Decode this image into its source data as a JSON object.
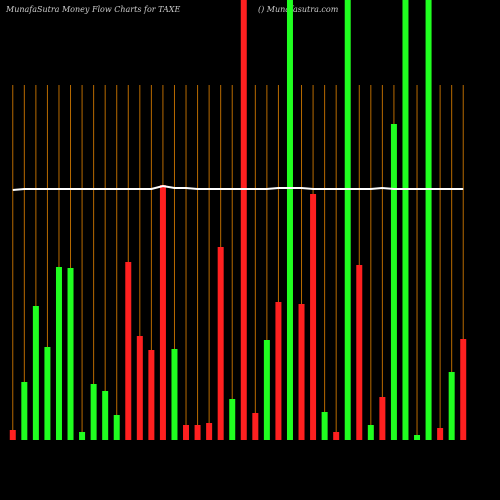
{
  "chart_data": {
    "type": "bar",
    "title": "MunafaSutra  Money Flow  Charts for TAXE",
    "subtitle": "() Munafasutra.com",
    "categories": [
      null,
      null,
      null,
      null,
      null,
      null,
      null,
      null,
      null,
      null,
      null,
      null,
      null,
      null,
      null,
      null,
      null,
      null,
      null,
      null,
      null,
      null,
      null,
      null,
      null,
      null,
      null,
      null,
      null,
      null,
      null,
      null,
      null,
      null,
      null,
      null,
      null,
      null,
      null,
      null
    ],
    "values": [
      10,
      58,
      134,
      93,
      173,
      172,
      8,
      56,
      49,
      25,
      178,
      104,
      90,
      255,
      91,
      15,
      15,
      17,
      193,
      41,
      440,
      27,
      100,
      138,
      440,
      136,
      246,
      28,
      8,
      440,
      175,
      15,
      43,
      316,
      440,
      5,
      440,
      12,
      68,
      101
    ],
    "colors": [
      "#ff2020",
      "#20ff20",
      "#20ff20",
      "#20ff20",
      "#20ff20",
      "#20ff20",
      "#20ff20",
      "#20ff20",
      "#20ff20",
      "#20ff20",
      "#ff2020",
      "#ff2020",
      "#ff2020",
      "#ff2020",
      "#20ff20",
      "#ff2020",
      "#ff2020",
      "#ff2020",
      "#ff2020",
      "#20ff20",
      "#ff2020",
      "#ff2020",
      "#20ff20",
      "#ff2020",
      "#20ff20",
      "#ff2020",
      "#ff2020",
      "#20ff20",
      "#ff2020",
      "#20ff20",
      "#ff2020",
      "#20ff20",
      "#ff2020",
      "#20ff20",
      "#20ff20",
      "#20ff20",
      "#20ff20",
      "#ff2020",
      "#20ff20",
      "#ff2020"
    ],
    "line": {
      "color": "#ffffff",
      "values": [
        250,
        251,
        251,
        251,
        251,
        251,
        251,
        251,
        251,
        251,
        251,
        251,
        251,
        254,
        252,
        252,
        251,
        251,
        251,
        251,
        251,
        251,
        251,
        252,
        252,
        252,
        251,
        251,
        251,
        251,
        251,
        251,
        252,
        251,
        251,
        251,
        251,
        251,
        251,
        251
      ]
    },
    "ylim": [
      0,
      440
    ]
  }
}
